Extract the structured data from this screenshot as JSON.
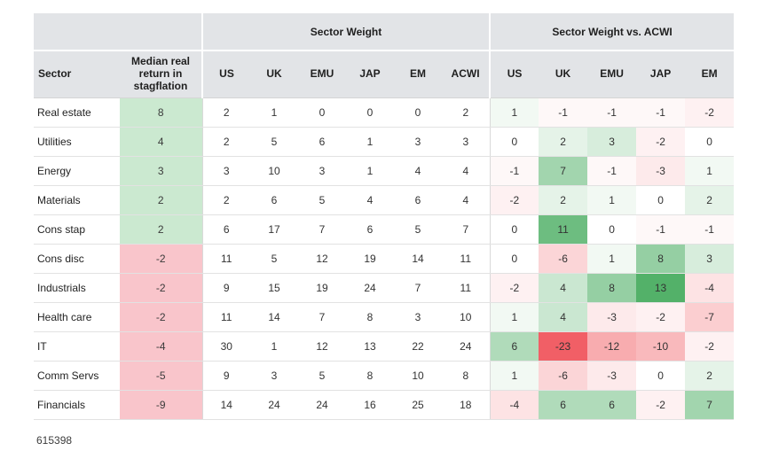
{
  "page": {
    "footnote": "615398"
  },
  "palette": {
    "header_bg": "#e2e4e7",
    "median_positive_bg": "#cbe9d0",
    "median_negative_bg": "#f9c5cb",
    "heat_positive_max": "#53b169",
    "heat_negative_max": "#f15f66",
    "heat_positive_limit": 13,
    "heat_negative_limit": 23,
    "heat_zero": "#ffffff"
  },
  "chart_data": {
    "type": "heatmap",
    "title": "",
    "group_headers": [
      "",
      "Sector Weight",
      "Sector Weight vs. ACWI"
    ],
    "row_header_label": "Sector",
    "median_col_label": "Median real return in stagflation",
    "weight_columns": [
      "US",
      "UK",
      "EMU",
      "JAP",
      "EM",
      "ACWI"
    ],
    "vs_acwi_columns": [
      "US",
      "UK",
      "EMU",
      "JAP",
      "EM"
    ],
    "rows": [
      {
        "sector": "Real estate",
        "median": 8,
        "weight": [
          2,
          1,
          0,
          0,
          0,
          2
        ],
        "vs_acwi": [
          1,
          -1,
          -1,
          -1,
          -2
        ]
      },
      {
        "sector": "Utilities",
        "median": 4,
        "weight": [
          2,
          5,
          6,
          1,
          3,
          3
        ],
        "vs_acwi": [
          0,
          2,
          3,
          -2,
          0
        ]
      },
      {
        "sector": "Energy",
        "median": 3,
        "weight": [
          3,
          10,
          3,
          1,
          4,
          4
        ],
        "vs_acwi": [
          -1,
          7,
          -1,
          -3,
          1
        ]
      },
      {
        "sector": "Materials",
        "median": 2,
        "weight": [
          2,
          6,
          5,
          4,
          6,
          4
        ],
        "vs_acwi": [
          -2,
          2,
          1,
          0,
          2
        ]
      },
      {
        "sector": "Cons stap",
        "median": 2,
        "weight": [
          6,
          17,
          7,
          6,
          5,
          7
        ],
        "vs_acwi": [
          0,
          11,
          0,
          -1,
          -1
        ]
      },
      {
        "sector": "Cons disc",
        "median": -2,
        "weight": [
          11,
          5,
          12,
          19,
          14,
          11
        ],
        "vs_acwi": [
          0,
          -6,
          1,
          8,
          3
        ]
      },
      {
        "sector": "Industrials",
        "median": -2,
        "weight": [
          9,
          15,
          19,
          24,
          7,
          11
        ],
        "vs_acwi": [
          -2,
          4,
          8,
          13,
          -4
        ]
      },
      {
        "sector": "Health care",
        "median": -2,
        "weight": [
          11,
          14,
          7,
          8,
          3,
          10
        ],
        "vs_acwi": [
          1,
          4,
          -3,
          -2,
          -7
        ]
      },
      {
        "sector": "IT",
        "median": -4,
        "weight": [
          30,
          1,
          12,
          13,
          22,
          24
        ],
        "vs_acwi": [
          6,
          -23,
          -12,
          -10,
          -2
        ]
      },
      {
        "sector": "Comm Servs",
        "median": -5,
        "weight": [
          9,
          3,
          5,
          8,
          10,
          8
        ],
        "vs_acwi": [
          1,
          -6,
          -3,
          0,
          2
        ]
      },
      {
        "sector": "Financials",
        "median": -9,
        "weight": [
          14,
          24,
          24,
          16,
          25,
          18
        ],
        "vs_acwi": [
          -4,
          6,
          6,
          -2,
          7
        ]
      }
    ]
  }
}
